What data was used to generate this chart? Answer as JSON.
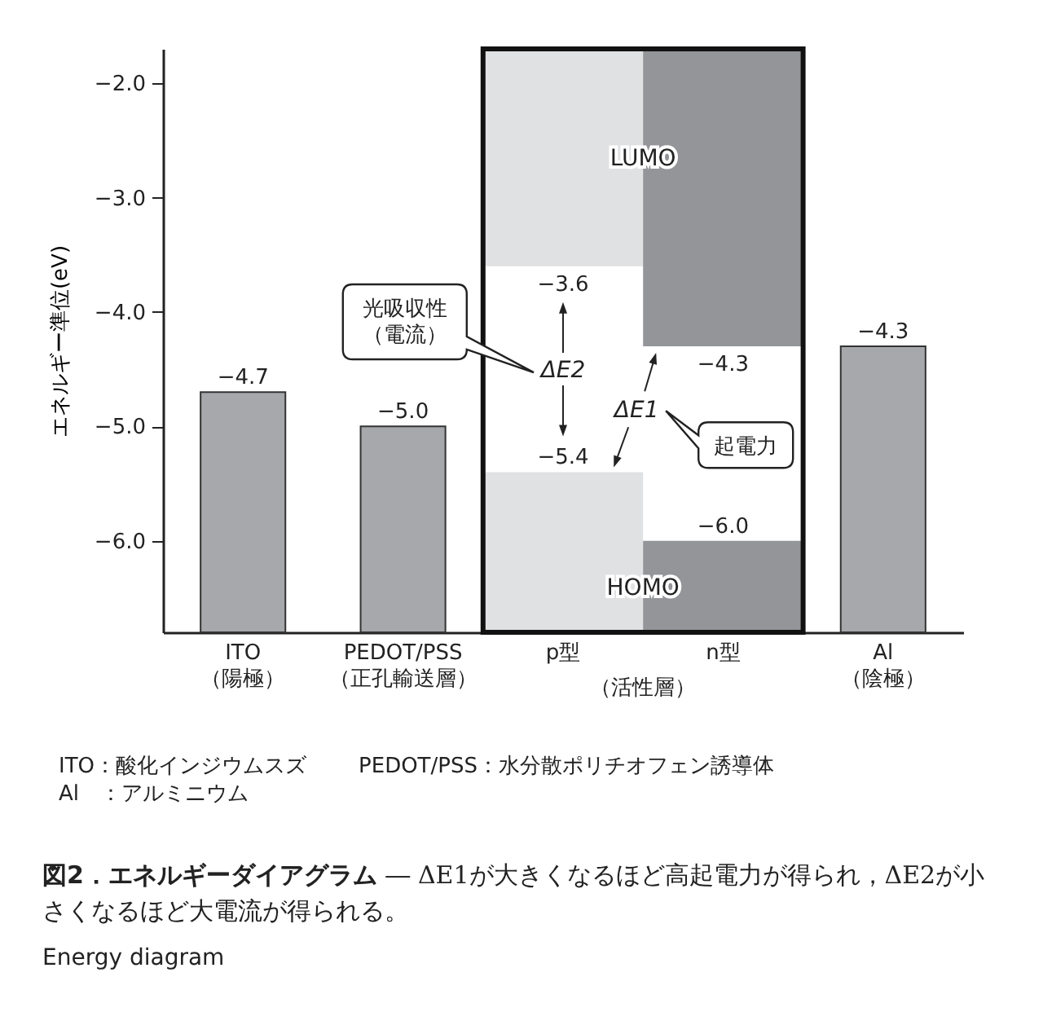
{
  "chart_data": {
    "type": "bar",
    "title": "図2．エネルギーダイアグラム",
    "subtitle": "― ΔE1が大きくなるほど高起電力が得られ，ΔE2が小さくなるほど大電流が得られる。",
    "ylabel": "エネルギー準位(eV)",
    "categories": [
      "ITO\n（陽極）",
      "PEDOT/PSS\n（正孔輸送層）",
      "p型",
      "n型",
      "Al\n（陰極）"
    ],
    "series": [
      {
        "color": "#a7a8ab",
        "values": [
          2.1,
          1.8,
          null,
          null,
          2.5
        ],
        "base": [
          -6.8,
          -6.8,
          null,
          null,
          -6.8
        ]
      },
      {
        "name": "LUMO",
        "colors": [
          null,
          null,
          "#e0e1e3",
          "#939598",
          null
        ],
        "values": [
          null,
          null,
          1.9,
          2.6,
          null
        ],
        "base": [
          null,
          null,
          -3.6,
          -4.3,
          null
        ]
      },
      {
        "name": "HOMO",
        "colors": [
          null,
          null,
          "#e0e1e3",
          "#939598",
          null
        ],
        "values": [
          null,
          null,
          1.4,
          0.8,
          null
        ],
        "base": [
          null,
          null,
          -6.8,
          -6.8,
          null
        ]
      }
    ],
    "ylim": [
      -6.8,
      -1.7
    ],
    "yticks": [
      {
        "value": -6,
        "label": "−6.0"
      },
      {
        "value": -5,
        "label": "−5.0"
      },
      {
        "value": -4,
        "label": "−4.0"
      },
      {
        "value": -3,
        "label": "−3.0"
      },
      {
        "value": -2,
        "label": "−2.0"
      }
    ],
    "grid": false,
    "annotations": [
      "ΔE2",
      "ΔE1",
      "光吸収性（電流）",
      "起電力",
      "（活性層）",
      "ITO：酸化インジウムスズ",
      "PEDOT/PSS：水分散ポリチオフェン誘導体",
      "Al　：アルミニウム",
      "Energy diagram",
      {
        "text": "−4.7",
        "x": "ITO\n（陽極）",
        "y": -4.7
      },
      {
        "text": "−5.0",
        "x": "PEDOT/PSS\n（正孔輸送層）",
        "y": -5.0
      },
      {
        "text": "−3.6",
        "x": "p型",
        "y": -3.6
      },
      {
        "text": "−5.4",
        "x": "p型",
        "y": -5.4
      },
      {
        "text": "−4.3",
        "x": "n型",
        "y": -4.3
      },
      {
        "text": "−6.0",
        "x": "n型",
        "y": -6.0
      },
      {
        "text": "−4.3",
        "x": "Al\n（陰極）",
        "y": -4.3
      }
    ]
  }
}
